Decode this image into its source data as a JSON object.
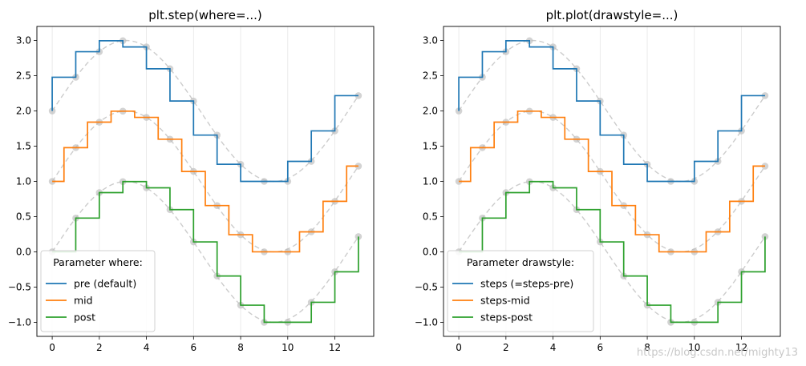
{
  "chart_data": [
    {
      "type": "line",
      "title": "plt.step(where=...)",
      "xlabel": "",
      "ylabel": "",
      "xlim": [
        -0.65,
        13.65
      ],
      "ylim": [
        -1.2,
        3.2
      ],
      "x_ticks": [
        0,
        2,
        4,
        6,
        8,
        10,
        12
      ],
      "y_ticks": [
        -1.0,
        -0.5,
        0.0,
        0.5,
        1.0,
        1.5,
        2.0,
        2.5,
        3.0
      ],
      "x_tick_labels": [
        "0",
        "2",
        "4",
        "6",
        "8",
        "10",
        "12"
      ],
      "y_tick_labels": [
        "−1.0",
        "−0.5",
        "0.0",
        "0.5",
        "1.0",
        "1.5",
        "2.0",
        "2.5",
        "3.0"
      ],
      "grid": "x-axis only",
      "legend": {
        "title": "Parameter where:",
        "position": "lower-left",
        "entries": [
          "pre (default)",
          "mid",
          "post"
        ]
      },
      "x": [
        0,
        1,
        2,
        3,
        4,
        5,
        6,
        7,
        8,
        9,
        10,
        11,
        12,
        13
      ],
      "series": [
        {
          "name": "pre (default)",
          "step": "pre",
          "color": "#1f77b4",
          "values": [
            2.0,
            2.479,
            2.841,
            2.997,
            2.909,
            2.599,
            2.141,
            1.657,
            1.243,
            1.0,
            1.0,
            1.284,
            1.717,
            2.217
          ]
        },
        {
          "name": "mid",
          "step": "mid",
          "color": "#ff7f0e",
          "values": [
            1.0,
            1.479,
            1.841,
            1.997,
            1.909,
            1.599,
            1.141,
            0.657,
            0.243,
            0.0,
            0.0,
            0.284,
            0.717,
            1.217
          ]
        },
        {
          "name": "post",
          "step": "post",
          "color": "#2ca02c",
          "values": [
            0.0,
            0.479,
            0.841,
            0.997,
            0.909,
            0.599,
            0.141,
            -0.343,
            -0.757,
            -1.0,
            -1.0,
            -0.716,
            -0.283,
            0.217
          ]
        }
      ],
      "markers_color": "#bbbbbb"
    },
    {
      "type": "line",
      "title": "plt.plot(drawstyle=...)",
      "xlabel": "",
      "ylabel": "",
      "xlim": [
        -0.65,
        13.65
      ],
      "ylim": [
        -1.2,
        3.2
      ],
      "x_ticks": [
        0,
        2,
        4,
        6,
        8,
        10,
        12
      ],
      "y_ticks": [
        -1.0,
        -0.5,
        0.0,
        0.5,
        1.0,
        1.5,
        2.0,
        2.5,
        3.0
      ],
      "x_tick_labels": [
        "0",
        "2",
        "4",
        "6",
        "8",
        "10",
        "12"
      ],
      "y_tick_labels": [
        "−1.0",
        "−0.5",
        "0.0",
        "0.5",
        "1.0",
        "1.5",
        "2.0",
        "2.5",
        "3.0"
      ],
      "grid": "x-axis only",
      "legend": {
        "title": "Parameter drawstyle:",
        "position": "lower-left",
        "entries": [
          "steps (=steps-pre)",
          "steps-mid",
          "steps-post"
        ]
      },
      "x": [
        0,
        1,
        2,
        3,
        4,
        5,
        6,
        7,
        8,
        9,
        10,
        11,
        12,
        13
      ],
      "series": [
        {
          "name": "steps (=steps-pre)",
          "step": "pre",
          "color": "#1f77b4",
          "values": [
            2.0,
            2.479,
            2.841,
            2.997,
            2.909,
            2.599,
            2.141,
            1.657,
            1.243,
            1.0,
            1.0,
            1.284,
            1.717,
            2.217
          ]
        },
        {
          "name": "steps-mid",
          "step": "mid",
          "color": "#ff7f0e",
          "values": [
            1.0,
            1.479,
            1.841,
            1.997,
            1.909,
            1.599,
            1.141,
            0.657,
            0.243,
            0.0,
            0.0,
            0.284,
            0.717,
            1.217
          ]
        },
        {
          "name": "steps-post",
          "step": "post",
          "color": "#2ca02c",
          "values": [
            0.0,
            0.479,
            0.841,
            0.997,
            0.909,
            0.599,
            0.141,
            -0.343,
            -0.757,
            -1.0,
            -1.0,
            -0.716,
            -0.283,
            0.217
          ]
        }
      ],
      "markers_color": "#bbbbbb"
    }
  ],
  "watermark": "https://blog.csdn.net/mighty13"
}
